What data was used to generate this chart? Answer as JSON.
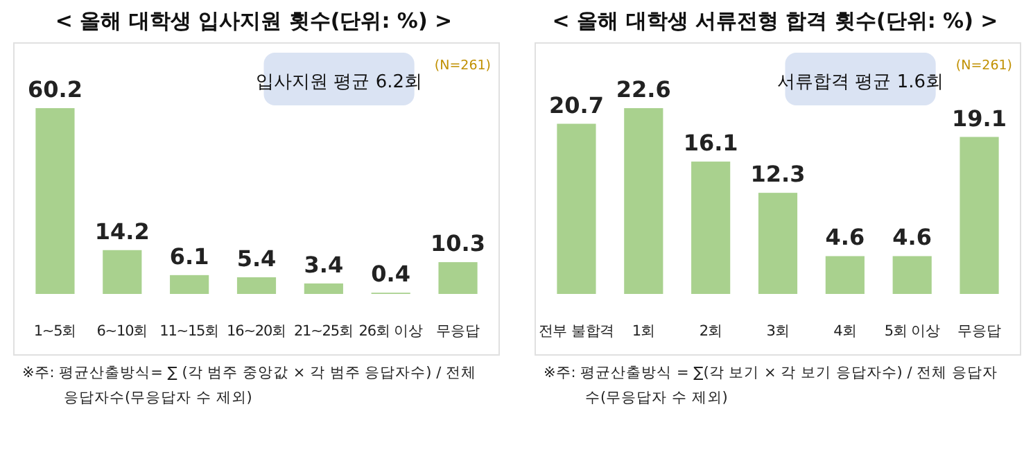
{
  "chart_data": [
    {
      "type": "bar",
      "title": "< 올해 대학생 입사지원 횟수(단위: %) >",
      "categories": [
        "1~5회",
        "6~10회",
        "11~15회",
        "16~20회",
        "21~25회",
        "26회 이상",
        "무응답"
      ],
      "values": [
        60.2,
        14.2,
        6.1,
        5.4,
        3.4,
        0.4,
        10.3
      ],
      "color": "#a9d18e",
      "data_labels": true,
      "annotations": [
        "입사지원 평균 6.2회",
        "(N=261)",
        "※주: 평균산출방식= ∑ (각 범주 중앙값 × 각 범주 응답자수) / 전체 응답자수(무응답자 수 제외)"
      ]
    },
    {
      "type": "bar",
      "title": "< 올해 대학생 서류전형 합격 횟수(단위: %) >",
      "categories": [
        "전부 불합격",
        "1회",
        "2회",
        "3회",
        "4회",
        "5회 이상",
        "무응답"
      ],
      "values": [
        20.7,
        22.6,
        16.1,
        12.3,
        4.6,
        4.6,
        19.1
      ],
      "color": "#a9d18e",
      "data_labels": true,
      "annotations": [
        "서류합격 평균 1.6회",
        "(N=261)",
        "※주: 평균산출방식 = ∑(각 보기 × 각 보기 응답자수) / 전체 응답자수(무응답자 수 제외)"
      ]
    }
  ]
}
